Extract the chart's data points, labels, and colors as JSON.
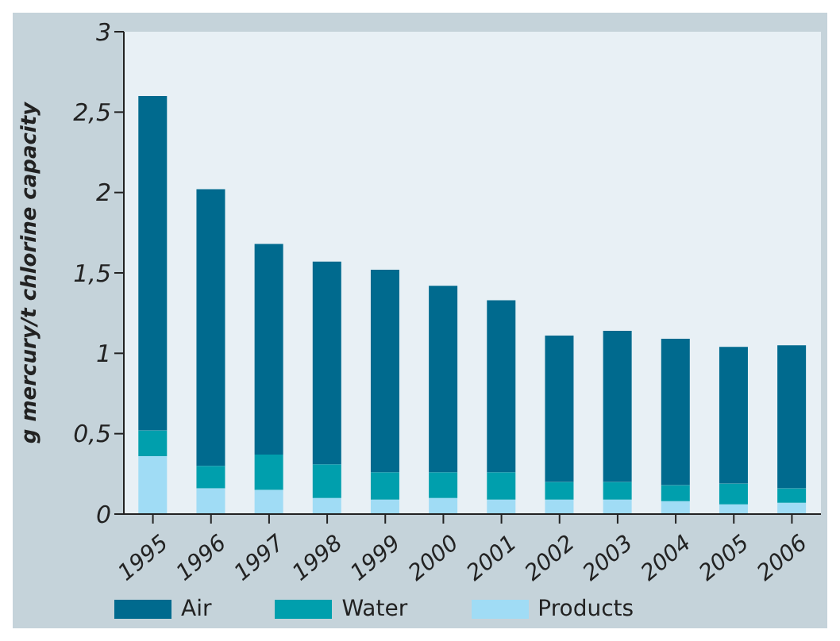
{
  "chart_data": {
    "type": "bar",
    "stacked": true,
    "ylabel": "g mercury/t chlorine capacity",
    "categories": [
      "1995",
      "1996",
      "1997",
      "1998",
      "1999",
      "2000",
      "2001",
      "2002",
      "2003",
      "2004",
      "2005",
      "2006"
    ],
    "series": [
      {
        "name": "Products",
        "color": "#a0dcf5",
        "values": [
          0.36,
          0.16,
          0.15,
          0.1,
          0.09,
          0.1,
          0.09,
          0.09,
          0.09,
          0.08,
          0.06,
          0.07
        ]
      },
      {
        "name": "Water",
        "color": "#009fad",
        "values": [
          0.16,
          0.14,
          0.22,
          0.21,
          0.17,
          0.16,
          0.17,
          0.11,
          0.11,
          0.1,
          0.13,
          0.09
        ]
      },
      {
        "name": "Air",
        "color": "#006a8e",
        "values": [
          2.08,
          1.72,
          1.31,
          1.26,
          1.26,
          1.16,
          1.07,
          0.91,
          0.94,
          0.91,
          0.85,
          0.89
        ]
      }
    ],
    "ylim": [
      0,
      3
    ],
    "yticks": [
      {
        "value": 0,
        "label": "0"
      },
      {
        "value": 0.5,
        "label": "0,5"
      },
      {
        "value": 1,
        "label": "1"
      },
      {
        "value": 1.5,
        "label": "1,5"
      },
      {
        "value": 2,
        "label": "2"
      },
      {
        "value": 2.5,
        "label": "2,5"
      },
      {
        "value": 3,
        "label": "3"
      }
    ],
    "grid": false,
    "legend": "bottom left"
  }
}
